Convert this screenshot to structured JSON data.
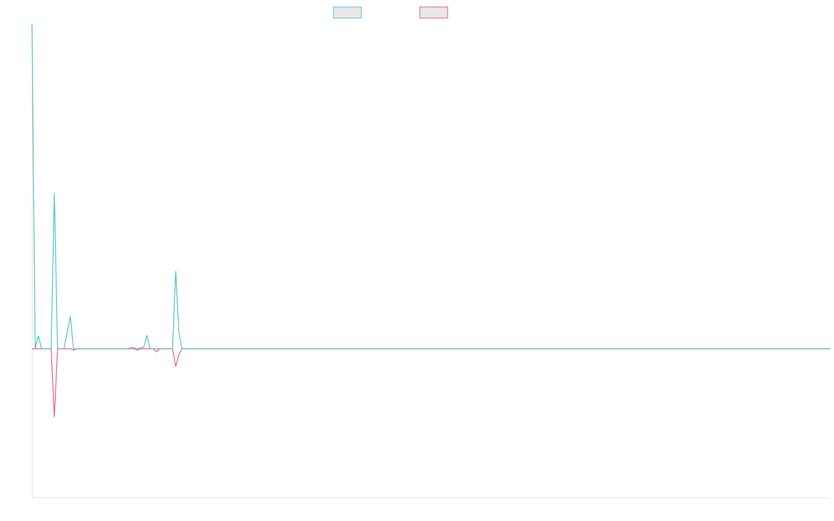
{
  "chart_data": {
    "type": "line",
    "title": "",
    "xlabel": "",
    "ylabel": "",
    "grid": false,
    "legend_position": "top-center",
    "ylim": [
      -1,
      1
    ],
    "series": [
      {
        "color": "#4bbfbf",
        "points": [
          [
            0,
            1.0
          ],
          [
            1,
            0.0
          ],
          [
            2,
            0.04
          ],
          [
            3,
            0.0
          ],
          [
            4,
            0.0
          ],
          [
            6,
            0.0
          ],
          [
            7,
            0.48
          ],
          [
            8,
            0.0
          ],
          [
            10,
            0.0
          ],
          [
            12,
            0.1
          ],
          [
            13,
            0.0
          ],
          [
            30,
            0.0
          ],
          [
            31,
            0.005
          ],
          [
            33,
            0.0
          ],
          [
            35,
            0.005
          ],
          [
            36,
            0.04
          ],
          [
            37,
            0.0
          ],
          [
            40,
            0.0
          ],
          [
            44,
            0.0
          ],
          [
            45,
            0.24
          ],
          [
            46,
            0.05
          ],
          [
            47,
            0.0
          ],
          [
            250,
            0.0
          ]
        ]
      },
      {
        "color": "#e8547a",
        "points": [
          [
            0,
            0.0
          ],
          [
            6,
            0.0
          ],
          [
            7,
            -0.46
          ],
          [
            8,
            0.0
          ],
          [
            12,
            0.0
          ],
          [
            13,
            -0.01
          ],
          [
            14,
            0.0
          ],
          [
            30,
            0.0
          ],
          [
            32,
            0.0
          ],
          [
            33,
            -0.01
          ],
          [
            34,
            0.0
          ],
          [
            38,
            0.0
          ],
          [
            39,
            -0.02
          ],
          [
            40,
            0.0
          ],
          [
            44,
            0.0
          ],
          [
            45,
            -0.12
          ],
          [
            46,
            -0.04
          ],
          [
            47,
            0.0
          ],
          [
            250,
            0.0
          ]
        ]
      }
    ]
  }
}
